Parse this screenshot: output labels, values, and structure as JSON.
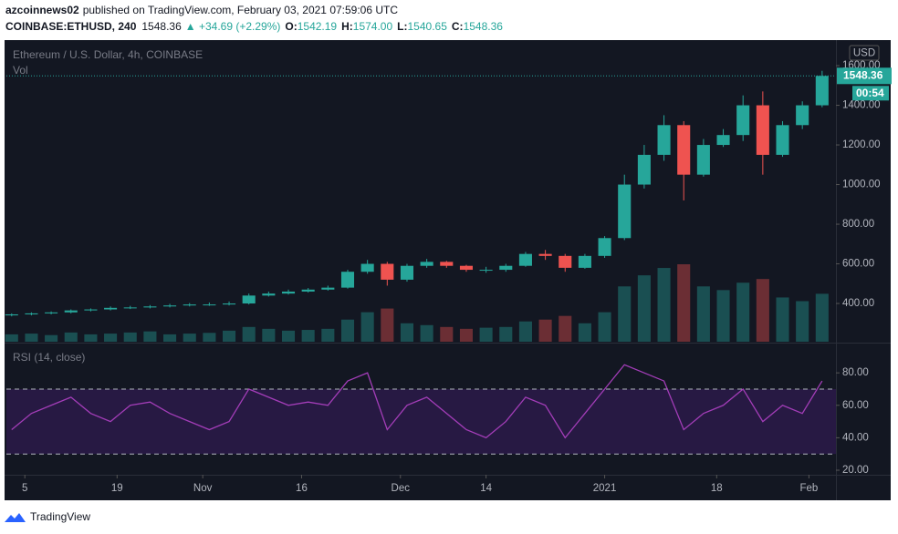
{
  "header": {
    "publisher": "azcoinnews02",
    "published": "published on TradingView.com, February 03, 2021 07:59:06 UTC",
    "symbol": "COINBASE:ETHUSD, 240",
    "last": "1548.36",
    "change": "▲ +34.69 (+2.29%)",
    "ohlc": [
      {
        "label": "O:",
        "value": "1542.19"
      },
      {
        "label": "H:",
        "value": "1574.00"
      },
      {
        "label": "L:",
        "value": "1540.65"
      },
      {
        "label": "C:",
        "value": "1548.36"
      }
    ]
  },
  "chart_data": {
    "type": "candlestick",
    "title": "Ethereum / U.S. Dollar, 4h, COINBASE",
    "volume_label": "Vol",
    "currency": "USD",
    "countdown": "00:54",
    "up_color": "#26a69a",
    "down_color": "#ef5350",
    "x": [
      -2,
      1,
      4,
      7,
      10,
      13,
      16,
      19,
      22,
      25,
      28,
      31,
      34,
      37,
      40,
      43,
      46,
      49,
      52,
      55,
      58,
      61,
      64,
      67,
      70,
      73,
      76,
      79,
      82,
      85,
      88,
      91,
      94,
      97,
      100,
      103,
      106,
      109,
      112,
      115,
      118,
      121
    ],
    "open": [
      340,
      345,
      350,
      355,
      365,
      370,
      378,
      380,
      385,
      390,
      395,
      395,
      400,
      440,
      450,
      460,
      470,
      480,
      560,
      600,
      520,
      590,
      610,
      590,
      570,
      570,
      590,
      650,
      640,
      580,
      640,
      730,
      1000,
      1150,
      1300,
      1050,
      1200,
      1250,
      1400,
      1150,
      1300,
      1400
    ],
    "high": [
      350,
      355,
      360,
      370,
      375,
      385,
      388,
      392,
      398,
      402,
      405,
      410,
      450,
      460,
      470,
      478,
      490,
      570,
      620,
      610,
      600,
      625,
      615,
      595,
      585,
      600,
      660,
      670,
      650,
      650,
      740,
      1050,
      1200,
      1350,
      1320,
      1230,
      1280,
      1450,
      1470,
      1320,
      1420,
      1574
    ],
    "low": [
      335,
      340,
      345,
      350,
      360,
      365,
      372,
      375,
      380,
      385,
      388,
      390,
      395,
      435,
      445,
      455,
      465,
      475,
      550,
      490,
      510,
      580,
      580,
      560,
      555,
      560,
      585,
      620,
      560,
      575,
      630,
      720,
      980,
      1120,
      920,
      1040,
      1190,
      1220,
      1050,
      1140,
      1280,
      1390
    ],
    "close": [
      345,
      350,
      355,
      365,
      370,
      378,
      380,
      385,
      390,
      395,
      395,
      400,
      440,
      450,
      460,
      470,
      480,
      560,
      600,
      520,
      590,
      610,
      590,
      570,
      570,
      590,
      650,
      640,
      580,
      640,
      730,
      1000,
      1150,
      1300,
      1050,
      1200,
      1250,
      1400,
      1150,
      1300,
      1400,
      1548.36
    ],
    "volume": [
      20,
      22,
      18,
      25,
      20,
      22,
      25,
      28,
      20,
      22,
      24,
      30,
      40,
      35,
      30,
      32,
      35,
      60,
      80,
      90,
      50,
      45,
      40,
      35,
      38,
      40,
      55,
      60,
      70,
      50,
      80,
      150,
      180,
      200,
      210,
      150,
      140,
      160,
      170,
      120,
      110,
      130
    ],
    "xlim": [
      -2.8,
      123.1
    ],
    "xticks": [
      {
        "value": 0,
        "label": "5"
      },
      {
        "value": 14,
        "label": "19"
      },
      {
        "value": 27,
        "label": "Nov"
      },
      {
        "value": 42,
        "label": "16"
      },
      {
        "value": 57,
        "label": "Dec"
      },
      {
        "value": 70,
        "label": "14"
      },
      {
        "value": 88,
        "label": "2021"
      },
      {
        "value": 105,
        "label": "18"
      },
      {
        "value": 119,
        "label": "Feb"
      }
    ],
    "ylim": [
      207,
      1729
    ],
    "yticks": [
      {
        "value": 400,
        "label": "400.00"
      },
      {
        "value": 600,
        "label": "600.00"
      },
      {
        "value": 800,
        "label": "800.00"
      },
      {
        "value": 1000,
        "label": "1000.00"
      },
      {
        "value": 1200,
        "label": "1200.00"
      },
      {
        "value": 1400,
        "label": "1400.00"
      },
      {
        "value": 1600,
        "label": "1600.00"
      }
    ],
    "rsi": {
      "label": "RSI (14, close)",
      "color": "#a33db8",
      "values": [
        45,
        55,
        60,
        65,
        55,
        50,
        60,
        62,
        55,
        50,
        45,
        50,
        70,
        65,
        60,
        62,
        60,
        75,
        80,
        45,
        60,
        65,
        55,
        45,
        40,
        50,
        65,
        60,
        40,
        55,
        70,
        85,
        80,
        75,
        45,
        55,
        60,
        70,
        50,
        60,
        55,
        75
      ],
      "ylim": [
        17.2,
        97.5
      ],
      "yticks": [
        {
          "value": 20,
          "label": "20.00"
        },
        {
          "value": 40,
          "label": "40.00"
        },
        {
          "value": 60,
          "label": "60.00"
        },
        {
          "value": 80,
          "label": "80.00"
        }
      ],
      "bands": [
        30,
        70
      ]
    }
  }
}
